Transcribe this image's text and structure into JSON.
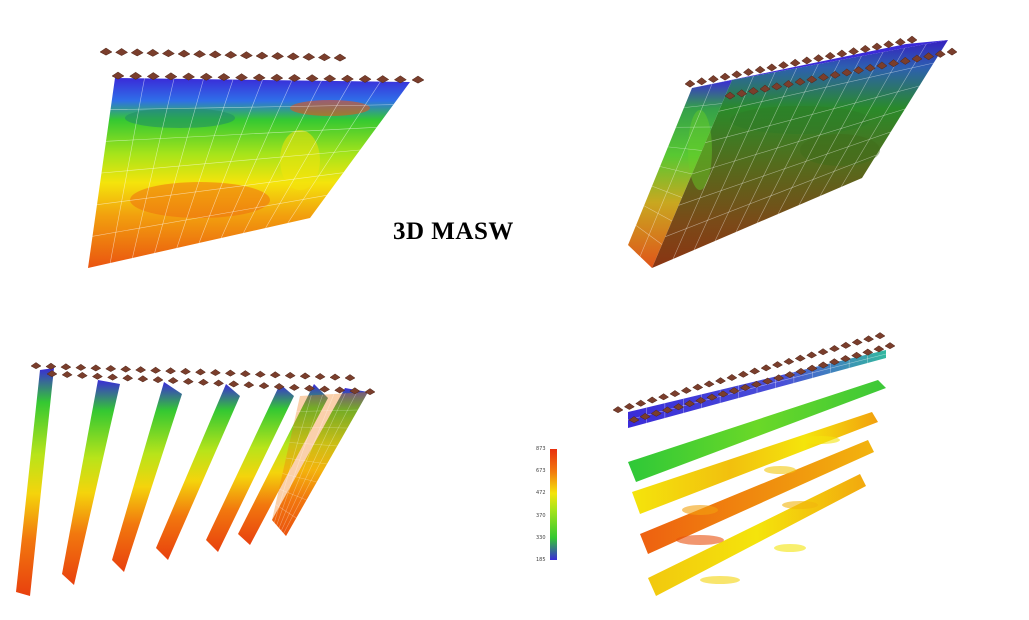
{
  "title": "3D MASW",
  "colors": {
    "blue": "#3a2bd8",
    "green": "#34c832",
    "yellow": "#f4e40c",
    "orange": "#f28a0e",
    "red": "#e8400e",
    "sensor": "#7a3e2c",
    "sensor_dark": "#4e2417",
    "grid": "#ffffff"
  },
  "colorbar": {
    "tick_labels": [
      "873",
      "673",
      "472",
      "370",
      "330",
      "185"
    ]
  },
  "panels": [
    {
      "name": "vertical-section-panel"
    },
    {
      "name": "3d-block-panel"
    },
    {
      "name": "parallel-vertical-slices-panel"
    },
    {
      "name": "horizontal-depth-slices-panel"
    }
  ]
}
